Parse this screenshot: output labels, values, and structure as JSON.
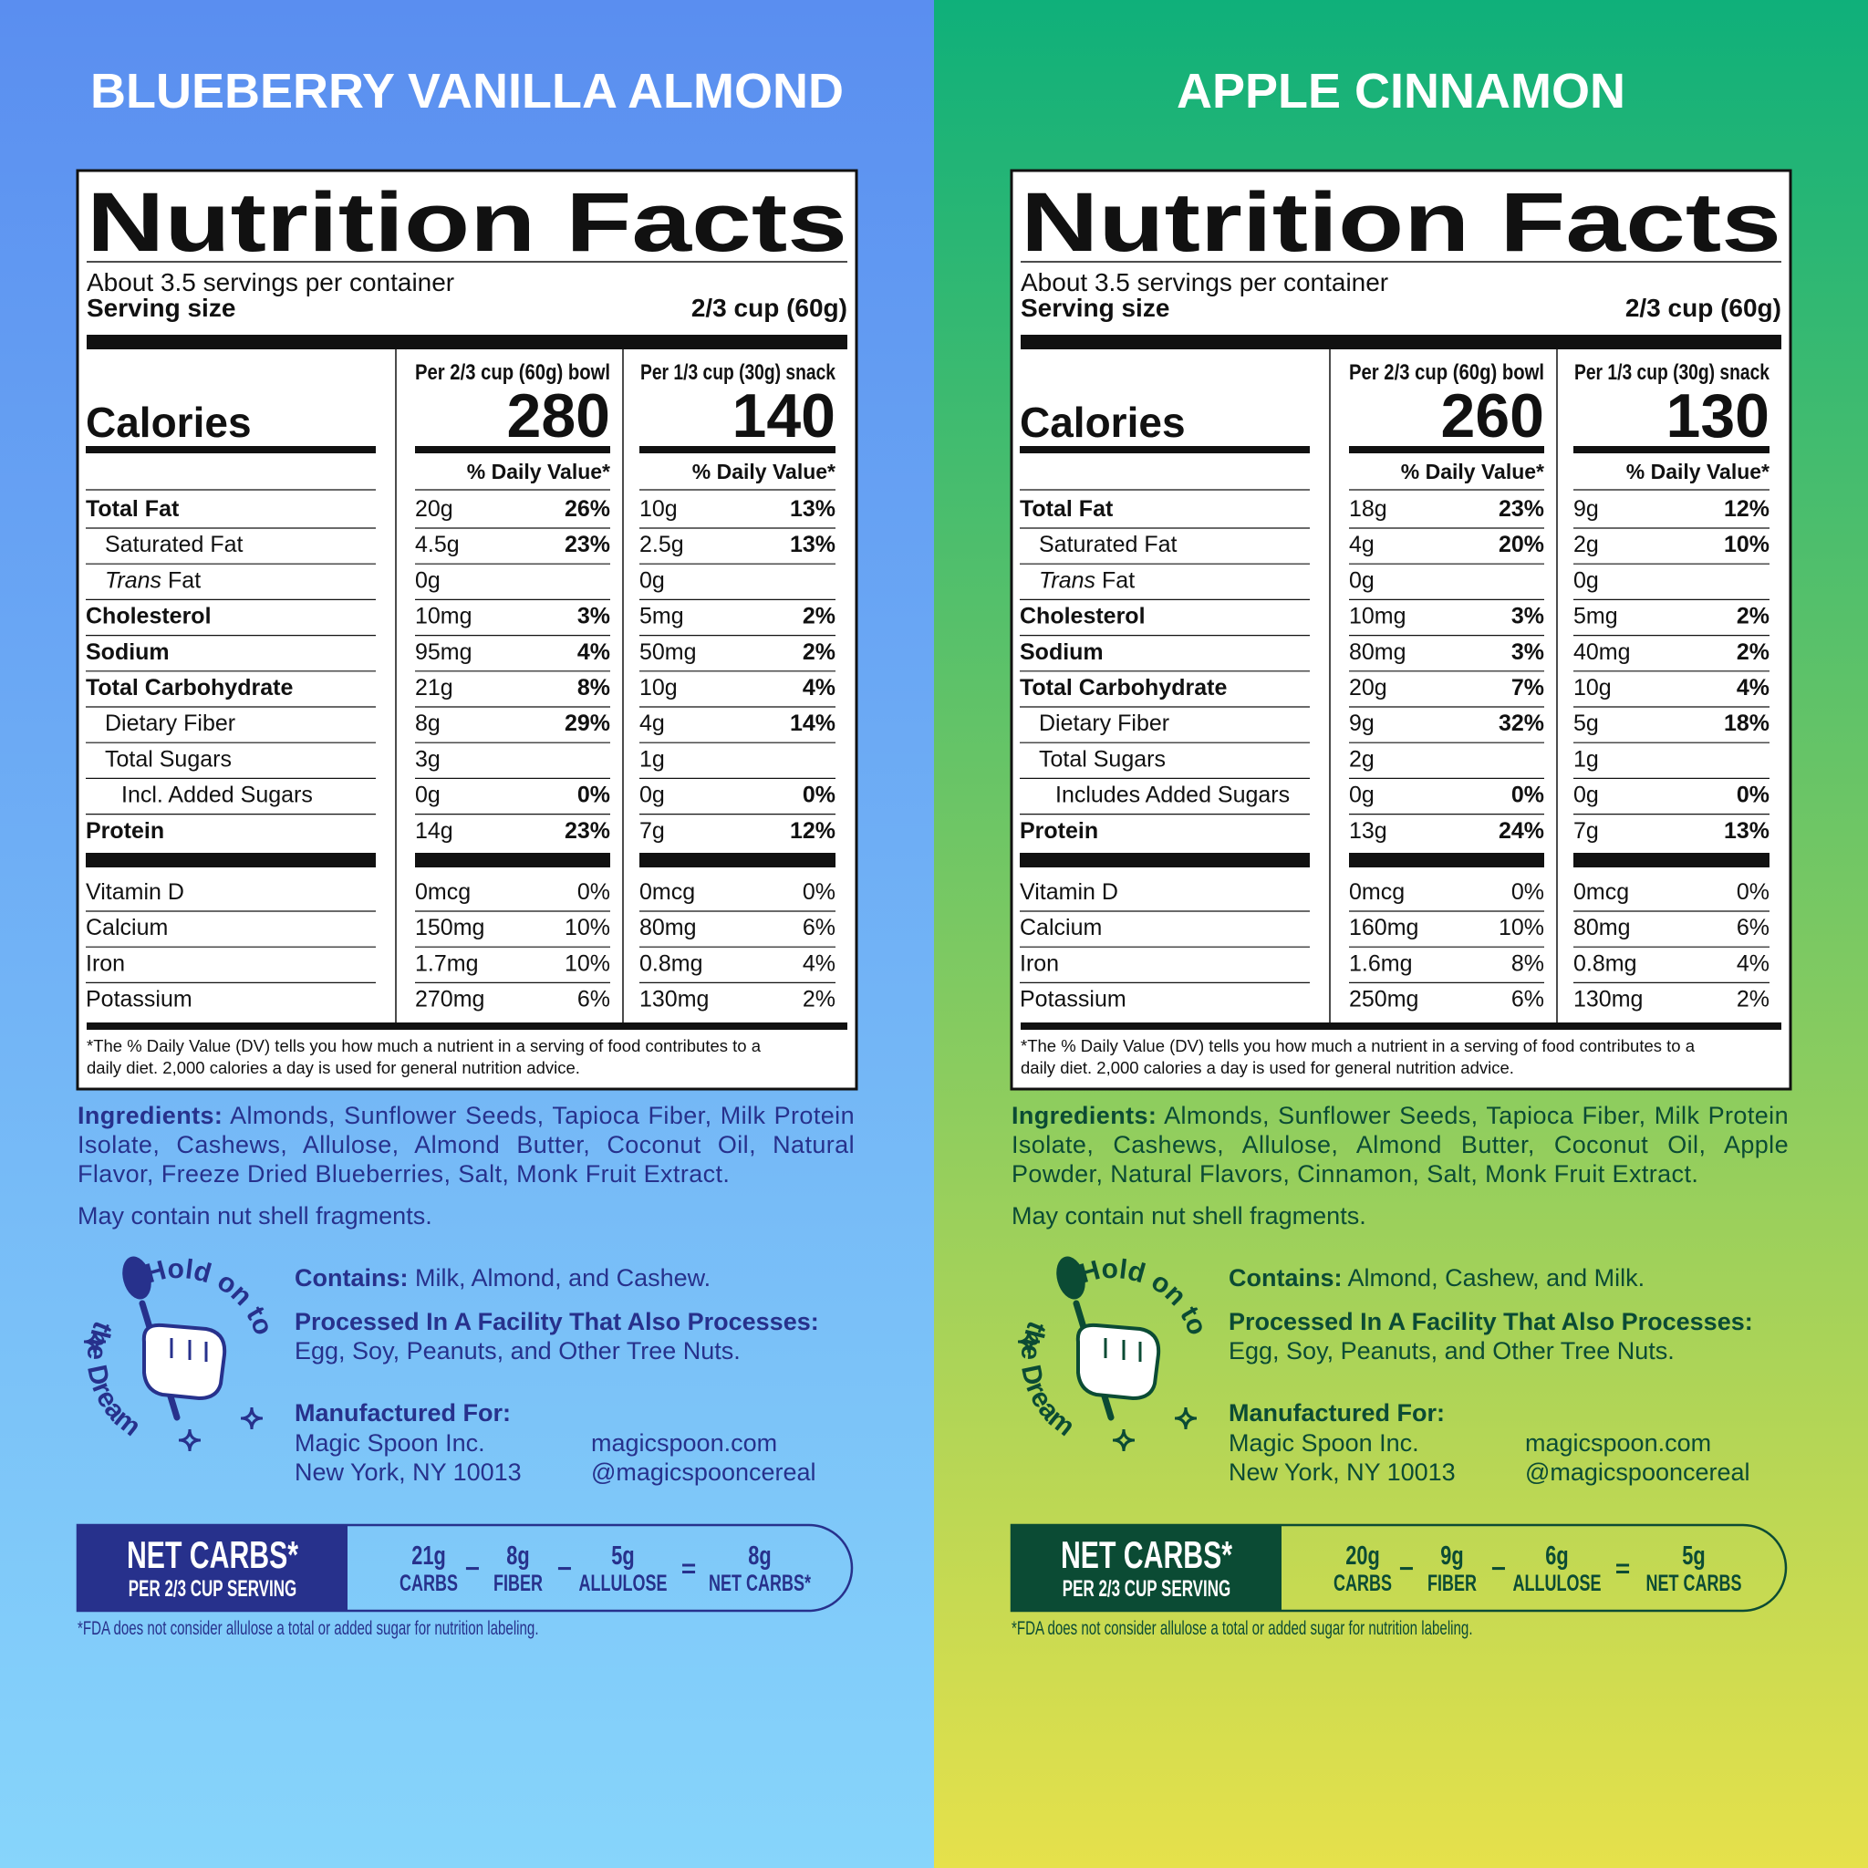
{
  "panels": [
    {
      "title": "BLUEBERRY VANILLA ALMOND",
      "colors": {
        "top": "#5a8ef0",
        "bottom": "#87d5fb",
        "ink": "#27318c"
      },
      "label": {
        "heading": "Nutrition Facts",
        "servings": "About 3.5 servings per container",
        "serving_size_label": "Serving size",
        "serving_size": "2/3 cup (60g)",
        "calories_label": "Calories",
        "columns": [
          {
            "header": "Per 2/3 cup (60g) bowl",
            "calories": 280,
            "dv_header": "% Daily Value*"
          },
          {
            "header": "Per 1/3 cup (30g) snack",
            "calories": 140,
            "dv_header": "% Daily Value*"
          }
        ],
        "nutrients": [
          {
            "name": "Total Fat",
            "bold": true,
            "indent": 0,
            "values": [
              {
                "amount": "20g",
                "dv": "26%"
              },
              {
                "amount": "10g",
                "dv": "13%"
              }
            ]
          },
          {
            "name": "Saturated Fat",
            "indent": 1,
            "values": [
              {
                "amount": "4.5g",
                "dv": "23%"
              },
              {
                "amount": "2.5g",
                "dv": "13%"
              }
            ]
          },
          {
            "name_italic": "Trans",
            "name": "Fat",
            "indent": 1,
            "values": [
              {
                "amount": "0g"
              },
              {
                "amount": "0g"
              }
            ]
          },
          {
            "name": "Cholesterol",
            "bold": true,
            "indent": 0,
            "values": [
              {
                "amount": "10mg",
                "dv": "3%"
              },
              {
                "amount": "5mg",
                "dv": "2%"
              }
            ]
          },
          {
            "name": "Sodium",
            "bold": true,
            "indent": 0,
            "values": [
              {
                "amount": "95mg",
                "dv": "4%"
              },
              {
                "amount": "50mg",
                "dv": "2%"
              }
            ]
          },
          {
            "name": "Total Carbohydrate",
            "bold": true,
            "indent": 0,
            "values": [
              {
                "amount": "21g",
                "dv": "8%"
              },
              {
                "amount": "10g",
                "dv": "4%"
              }
            ]
          },
          {
            "name": "Dietary Fiber",
            "indent": 1,
            "values": [
              {
                "amount": "8g",
                "dv": "29%"
              },
              {
                "amount": "4g",
                "dv": "14%"
              }
            ]
          },
          {
            "name": "Total Sugars",
            "indent": 1,
            "values": [
              {
                "amount": "3g"
              },
              {
                "amount": "1g"
              }
            ]
          },
          {
            "name": "Incl. Added Sugars",
            "indent": 2,
            "values": [
              {
                "amount": "0g",
                "dv": "0%"
              },
              {
                "amount": "0g",
                "dv": "0%"
              }
            ]
          },
          {
            "name": "Protein",
            "bold": true,
            "indent": 0,
            "values": [
              {
                "amount": "14g",
                "dv": "23%"
              },
              {
                "amount": "7g",
                "dv": "12%"
              }
            ]
          }
        ],
        "vitamins": [
          {
            "name": "Vitamin D",
            "values": [
              {
                "amount": "0mcg",
                "dv": "0%"
              },
              {
                "amount": "0mcg",
                "dv": "0%"
              }
            ]
          },
          {
            "name": "Calcium",
            "values": [
              {
                "amount": "150mg",
                "dv": "10%"
              },
              {
                "amount": "80mg",
                "dv": "6%"
              }
            ]
          },
          {
            "name": "Iron",
            "values": [
              {
                "amount": "1.7mg",
                "dv": "10%"
              },
              {
                "amount": "0.8mg",
                "dv": "4%"
              }
            ]
          },
          {
            "name": "Potassium",
            "values": [
              {
                "amount": "270mg",
                "dv": "6%"
              },
              {
                "amount": "130mg",
                "dv": "2%"
              }
            ]
          }
        ],
        "footnote": [
          "*The % Daily Value (DV) tells you how much a nutrient in a serving of food contributes to a",
          "daily diet. 2,000 calories a day is used for general nutrition advice."
        ]
      },
      "ingredients_label": "Ingredients:",
      "ingredients": "Almonds, Sunflower Seeds, Tapioca Fiber, Milk Protein Isolate, Cashews, Allulose, Almond Butter, Coconut Oil, Natural Flavor, Freeze Dried Blueberries, Salt, Monk Fruit Extract.",
      "warning": "May contain nut shell fragments.",
      "badge": [
        "Hold on to",
        "the Dream"
      ],
      "contains_label": "Contains:",
      "contains": "Milk,  Almond, and Cashew.",
      "facility_label": "Processed In A Facility That Also Processes:",
      "facility": "Egg, Soy, Peanuts, and Other Tree Nuts.",
      "manufactured_label": "Manufactured For:",
      "address": [
        "Magic Spoon Inc.",
        "New York, NY 10013"
      ],
      "web": [
        "magicspoon.com",
        "@magicspooncereal"
      ],
      "net_carbs": {
        "title": "NET CARBS*",
        "subtitle": "PER 2/3 CUP SERVING",
        "items": [
          {
            "value": "21g",
            "label": "CARBS"
          },
          {
            "value": "8g",
            "label": "FIBER"
          },
          {
            "value": "5g",
            "label": "ALLULOSE"
          },
          {
            "value": "8g",
            "label": "NET CARBS*"
          }
        ],
        "operators": [
          "−",
          "−",
          "="
        ]
      },
      "fda_note": "*FDA does not consider allulose a total or added sugar for nutrition labeling."
    },
    {
      "title": "APPLE CINNAMON",
      "colors": {
        "top": "#0fb07a",
        "bottom": "#e6e14b",
        "ink": "#0b4b34"
      },
      "label": {
        "heading": "Nutrition Facts",
        "servings": "About 3.5 servings per container",
        "serving_size_label": "Serving size",
        "serving_size": "2/3 cup (60g)",
        "calories_label": "Calories",
        "columns": [
          {
            "header": "Per 2/3 cup (60g) bowl",
            "calories": 260,
            "dv_header": "% Daily Value*"
          },
          {
            "header": "Per 1/3 cup (30g) snack",
            "calories": 130,
            "dv_header": "% Daily Value*"
          }
        ],
        "nutrients": [
          {
            "name": "Total Fat",
            "bold": true,
            "indent": 0,
            "values": [
              {
                "amount": "18g",
                "dv": "23%"
              },
              {
                "amount": "9g",
                "dv": "12%"
              }
            ]
          },
          {
            "name": "Saturated Fat",
            "indent": 1,
            "values": [
              {
                "amount": "4g",
                "dv": "20%"
              },
              {
                "amount": "2g",
                "dv": "10%"
              }
            ]
          },
          {
            "name_italic": "Trans",
            "name": "Fat",
            "indent": 1,
            "values": [
              {
                "amount": "0g"
              },
              {
                "amount": "0g"
              }
            ]
          },
          {
            "name": "Cholesterol",
            "bold": true,
            "indent": 0,
            "values": [
              {
                "amount": "10mg",
                "dv": "3%"
              },
              {
                "amount": "5mg",
                "dv": "2%"
              }
            ]
          },
          {
            "name": "Sodium",
            "bold": true,
            "indent": 0,
            "values": [
              {
                "amount": "80mg",
                "dv": "3%"
              },
              {
                "amount": "40mg",
                "dv": "2%"
              }
            ]
          },
          {
            "name": "Total Carbohydrate",
            "bold": true,
            "indent": 0,
            "values": [
              {
                "amount": "20g",
                "dv": "7%"
              },
              {
                "amount": "10g",
                "dv": "4%"
              }
            ]
          },
          {
            "name": "Dietary Fiber",
            "indent": 1,
            "values": [
              {
                "amount": "9g",
                "dv": "32%"
              },
              {
                "amount": "5g",
                "dv": "18%"
              }
            ]
          },
          {
            "name": "Total Sugars",
            "indent": 1,
            "values": [
              {
                "amount": "2g"
              },
              {
                "amount": "1g"
              }
            ]
          },
          {
            "name": "Includes Added Sugars",
            "indent": 2,
            "values": [
              {
                "amount": "0g",
                "dv": "0%"
              },
              {
                "amount": "0g",
                "dv": "0%"
              }
            ]
          },
          {
            "name": "Protein",
            "bold": true,
            "indent": 0,
            "values": [
              {
                "amount": "13g",
                "dv": "24%"
              },
              {
                "amount": "7g",
                "dv": "13%"
              }
            ]
          }
        ],
        "vitamins": [
          {
            "name": "Vitamin D",
            "values": [
              {
                "amount": "0mcg",
                "dv": "0%"
              },
              {
                "amount": "0mcg",
                "dv": "0%"
              }
            ]
          },
          {
            "name": "Calcium",
            "values": [
              {
                "amount": "160mg",
                "dv": "10%"
              },
              {
                "amount": "80mg",
                "dv": "6%"
              }
            ]
          },
          {
            "name": "Iron",
            "values": [
              {
                "amount": "1.6mg",
                "dv": "8%"
              },
              {
                "amount": "0.8mg",
                "dv": "4%"
              }
            ]
          },
          {
            "name": "Potassium",
            "values": [
              {
                "amount": "250mg",
                "dv": "6%"
              },
              {
                "amount": "130mg",
                "dv": "2%"
              }
            ]
          }
        ],
        "footnote": [
          "*The % Daily Value (DV) tells you how much a nutrient in a serving of food contributes to a",
          "daily diet. 2,000 calories a day is used for general nutrition advice."
        ]
      },
      "ingredients_label": "Ingredients:",
      "ingredients": "Almonds, Sunflower Seeds, Tapioca Fiber, Milk Protein Isolate, Cashews, Allulose, Almond Butter, Coconut Oil, Apple Powder, Natural Flavors, Cinnamon, Salt, Monk Fruit Extract.",
      "warning": "May contain nut shell fragments.",
      "badge": [
        "Hold on to",
        "the Dream"
      ],
      "contains_label": "Contains:",
      "contains": "Almond, Cashew, and Milk.",
      "facility_label": "Processed In A Facility That Also Processes:",
      "facility": "Egg, Soy, Peanuts, and Other Tree Nuts.",
      "manufactured_label": "Manufactured For:",
      "address": [
        "Magic Spoon Inc.",
        "New York, NY 10013"
      ],
      "web": [
        "magicspoon.com",
        "@magicspooncereal"
      ],
      "net_carbs": {
        "title": "NET CARBS*",
        "subtitle": "PER 2/3 CUP SERVING",
        "items": [
          {
            "value": "20g",
            "label": "CARBS"
          },
          {
            "value": "9g",
            "label": "FIBER"
          },
          {
            "value": "6g",
            "label": "ALLULOSE"
          },
          {
            "value": "5g",
            "label": "NET CARBS"
          }
        ],
        "operators": [
          "−",
          "−",
          "="
        ]
      },
      "fda_note": "*FDA does not consider allulose a total or added sugar for nutrition labeling."
    }
  ]
}
